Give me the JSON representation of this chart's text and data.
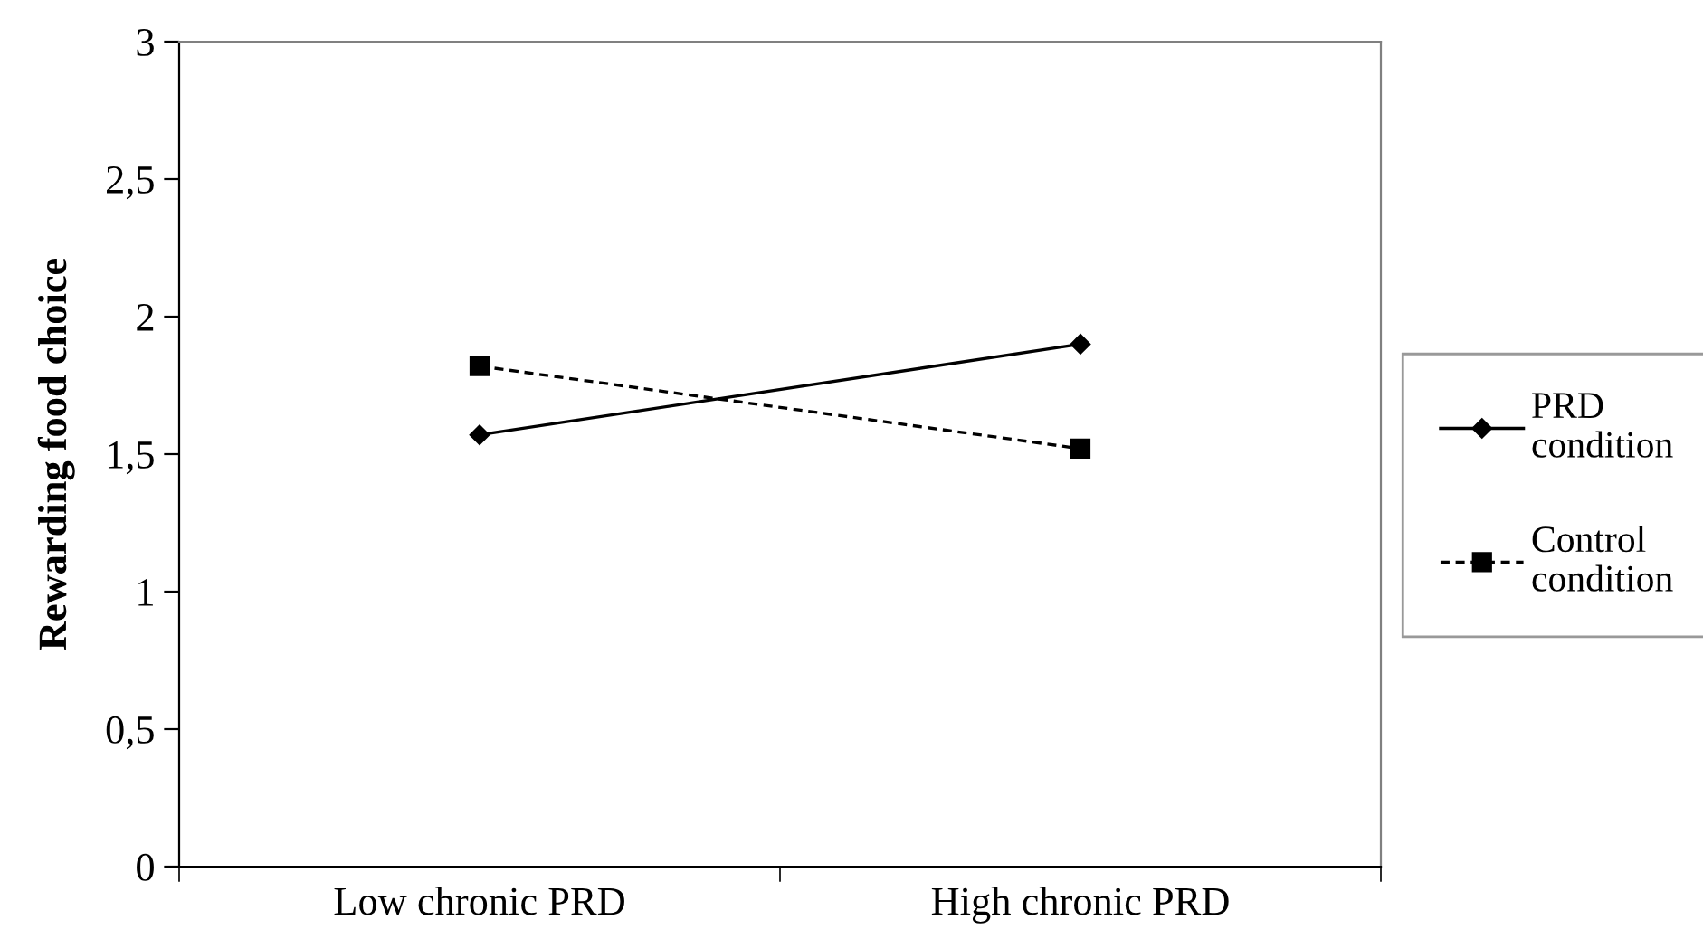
{
  "chart_data": {
    "type": "line",
    "ylabel": "Rewarding food choice",
    "categories": [
      "Low chronic PRD",
      "High chronic PRD"
    ],
    "series": [
      {
        "name": "PRD\ncondition",
        "color": "#000000",
        "values": [
          1.57,
          1.9
        ],
        "marker": "diamond",
        "line_style": "solid"
      },
      {
        "name": "Control\ncondition",
        "color": "#000000",
        "values": [
          1.82,
          1.52
        ],
        "marker": "square",
        "line_style": "dashed"
      }
    ],
    "ylim": [
      0,
      3
    ],
    "yticks": [
      {
        "value": 0,
        "label": "0"
      },
      {
        "value": 0.5,
        "label": "0,5"
      },
      {
        "value": 1,
        "label": "1"
      },
      {
        "value": 1.5,
        "label": "1,5"
      },
      {
        "value": 2,
        "label": "2"
      },
      {
        "value": 2.5,
        "label": "2,5"
      },
      {
        "value": 3,
        "label": "3"
      }
    ],
    "grid": false,
    "legend": "right"
  }
}
